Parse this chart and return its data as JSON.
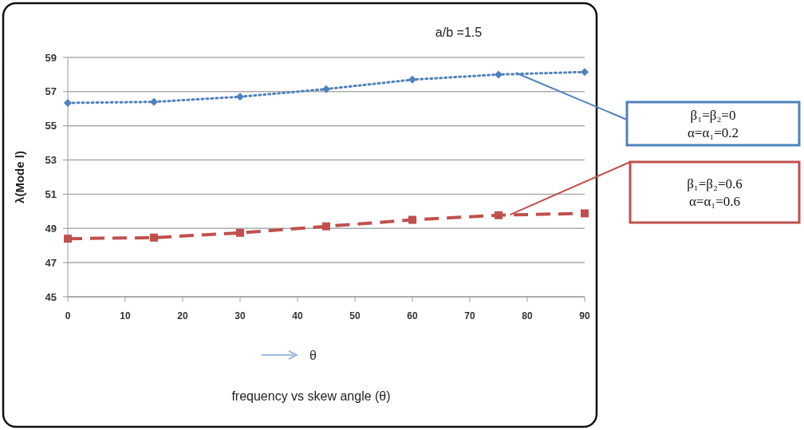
{
  "chart_data": {
    "type": "line",
    "title": "a/b =1.5",
    "ylabel": "λ(Mode l)",
    "x": [
      0,
      15,
      30,
      45,
      60,
      75,
      90
    ],
    "series": [
      {
        "color": "#4f81bd",
        "marker": "diamond",
        "line_style": "dotted",
        "values": [
          56.34,
          56.4,
          56.7,
          57.15,
          57.7,
          58.0,
          58.15
        ]
      },
      {
        "color": "#c0504d",
        "marker": "square",
        "line_style": "dashed",
        "values": [
          48.4,
          48.46,
          48.74,
          49.12,
          49.5,
          49.77,
          49.88
        ]
      }
    ],
    "annotations": [
      "β₁=β₂=0\nα=α₁=0.2",
      "β₁=β₂=0.6\nα=α₁=0.6",
      "θ",
      "frequency vs skew angle (θ)"
    ],
    "xlim": [
      0,
      90
    ],
    "xticks": [
      0,
      10,
      20,
      30,
      40,
      50,
      60,
      70,
      80,
      90
    ],
    "ylim": [
      45,
      59
    ],
    "yticks": [
      45,
      47,
      49,
      51,
      53,
      55,
      57,
      59
    ],
    "grid": "y"
  }
}
